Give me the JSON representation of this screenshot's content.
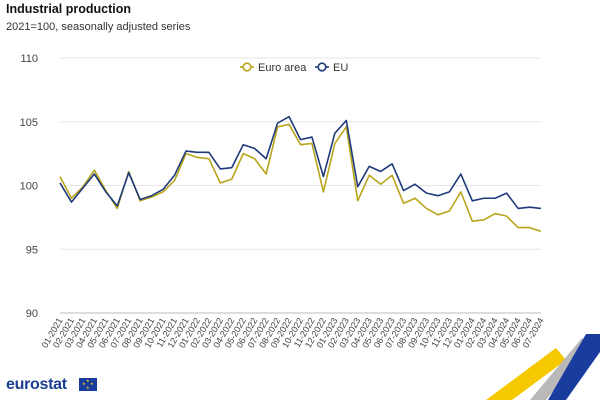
{
  "header": {
    "title": "Industrial production",
    "subtitle": "2021=100, seasonally adjusted series"
  },
  "footer": {
    "brand": "eurostat"
  },
  "chart_data": {
    "type": "line",
    "title": "Industrial production",
    "subtitle": "2021=100, seasonally adjusted series",
    "xlabel": "",
    "ylabel": "",
    "ylim": [
      90,
      110
    ],
    "yticks": [
      90,
      95,
      100,
      105,
      110
    ],
    "grid": true,
    "legend_position": "top-center",
    "categories": [
      "01-2021",
      "02-2021",
      "03-2021",
      "04-2021",
      "05-2021",
      "06-2021",
      "07-2021",
      "08-2021",
      "09-2021",
      "10-2021",
      "11-2021",
      "12-2021",
      "01-2022",
      "02-2022",
      "03-2022",
      "04-2022",
      "05-2022",
      "06-2022",
      "07-2022",
      "08-2022",
      "09-2022",
      "10-2022",
      "11-2022",
      "12-2022",
      "01-2023",
      "02-2023",
      "03-2023",
      "04-2023",
      "05-2023",
      "06-2023",
      "07-2023",
      "08-2023",
      "09-2023",
      "10-2023",
      "11-2023",
      "12-2023",
      "01-2024",
      "02-2024",
      "03-2024",
      "04-2024",
      "05-2024",
      "06-2024",
      "07-2024"
    ],
    "series": [
      {
        "name": "Euro area",
        "color": "#b9a51c",
        "values": [
          100.7,
          99.0,
          99.9,
          101.2,
          99.6,
          98.2,
          101.1,
          98.8,
          99.1,
          99.5,
          100.4,
          102.5,
          102.2,
          102.1,
          100.2,
          100.5,
          102.5,
          102.1,
          100.9,
          104.6,
          104.8,
          103.2,
          103.3,
          99.5,
          103.3,
          104.6,
          98.8,
          100.8,
          100.1,
          100.8,
          98.6,
          99.0,
          98.2,
          97.7,
          98.0,
          99.5,
          97.2,
          97.3,
          97.8,
          97.6,
          96.7,
          96.7,
          96.4
        ]
      },
      {
        "name": "EU",
        "color": "#1f3a7a",
        "values": [
          100.2,
          98.7,
          99.8,
          100.9,
          99.5,
          98.4,
          101.0,
          98.9,
          99.2,
          99.7,
          100.8,
          102.7,
          102.6,
          102.6,
          101.3,
          101.4,
          103.2,
          102.9,
          102.1,
          104.9,
          105.4,
          103.6,
          103.8,
          100.7,
          104.1,
          105.1,
          99.9,
          101.5,
          101.1,
          101.7,
          99.6,
          100.1,
          99.4,
          99.2,
          99.5,
          100.9,
          98.8,
          99.0,
          99.0,
          99.4,
          98.2,
          98.3,
          98.2
        ]
      }
    ]
  }
}
